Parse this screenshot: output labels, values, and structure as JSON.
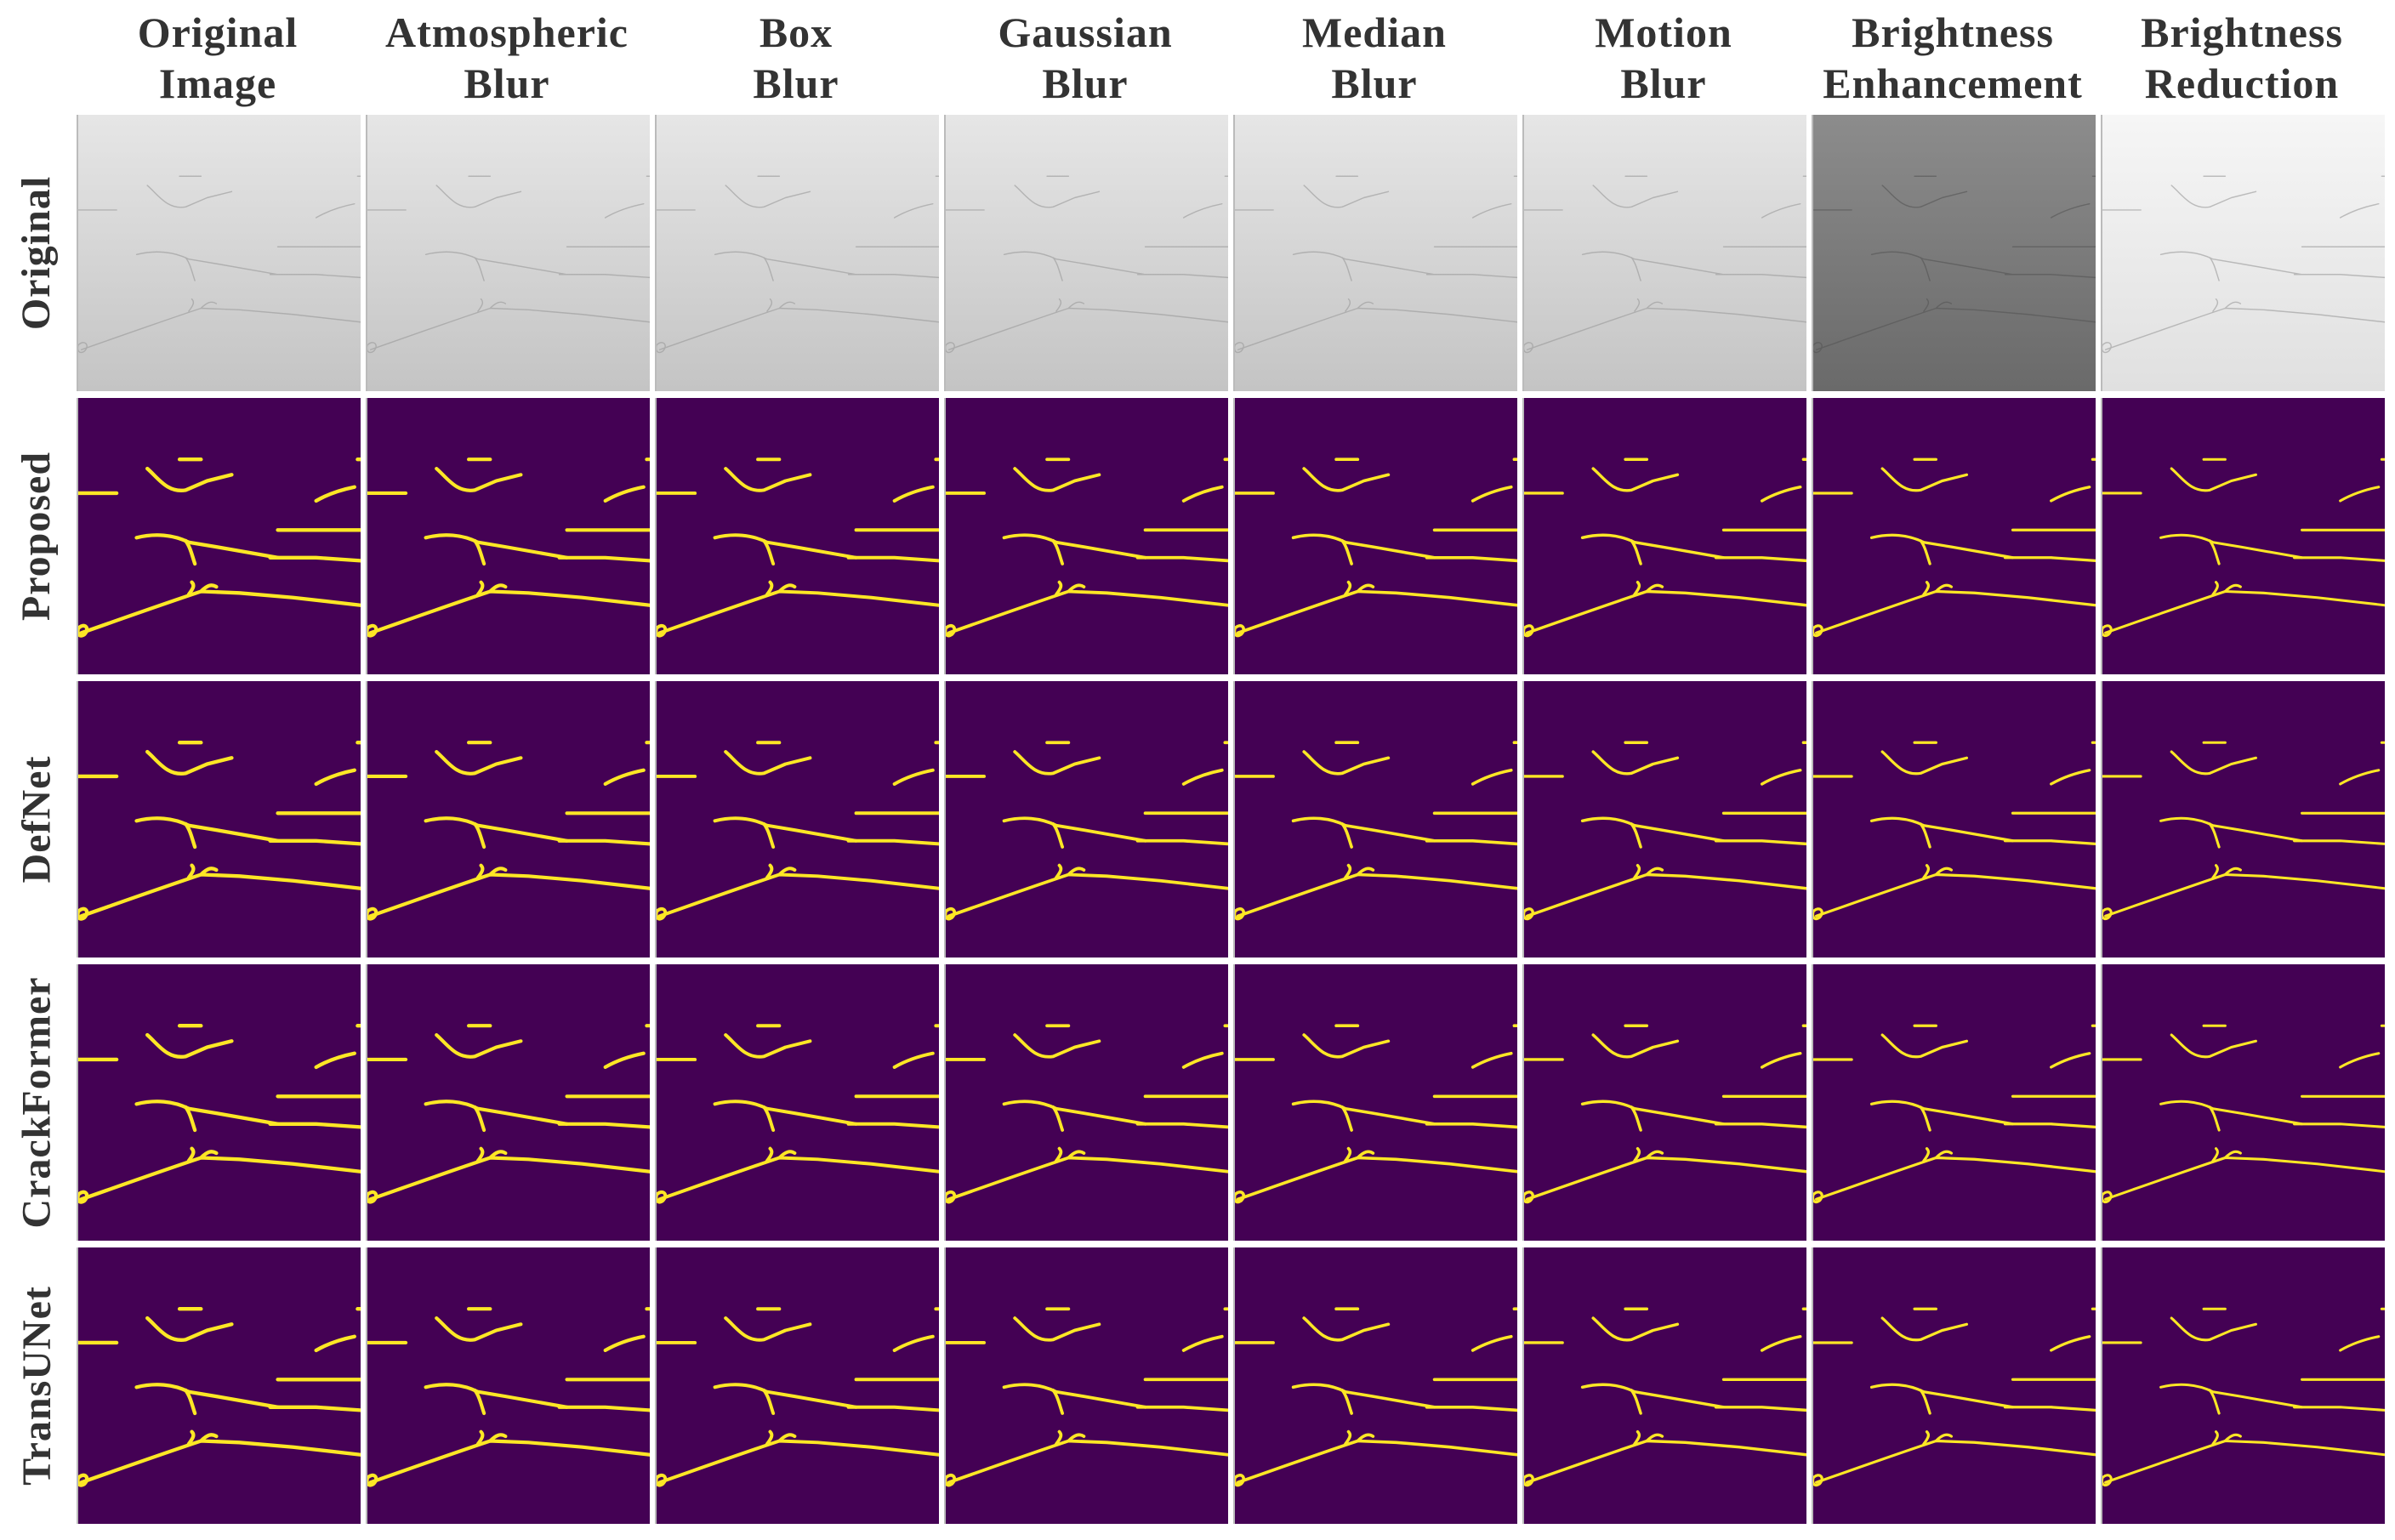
{
  "columns": [
    {
      "lines": [
        "Original",
        "Image"
      ]
    },
    {
      "lines": [
        "Atmospheric",
        "Blur"
      ]
    },
    {
      "lines": [
        "Box",
        "Blur"
      ]
    },
    {
      "lines": [
        "Gaussian",
        "Blur"
      ]
    },
    {
      "lines": [
        "Median",
        "Blur"
      ]
    },
    {
      "lines": [
        "Motion",
        "Blur"
      ]
    },
    {
      "lines": [
        "Brightness",
        "Enhancement"
      ]
    },
    {
      "lines": [
        "Brightness",
        "Reduction"
      ]
    }
  ],
  "rows": [
    "Original",
    "Proposed",
    "DefNet",
    "CrackFormer",
    "TransUNet"
  ]
}
